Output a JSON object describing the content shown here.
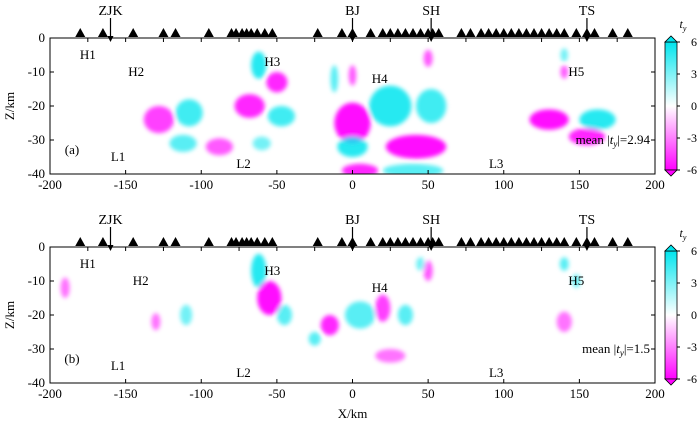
{
  "chart_data": [
    {
      "type": "heatmap",
      "panel_label": "(a)",
      "xlabel": "",
      "ylabel": "Z/km",
      "xlim": [
        -200,
        200
      ],
      "ylim": [
        -40,
        0
      ],
      "xticks": [
        -200,
        -150,
        -100,
        -50,
        0,
        50,
        100,
        150,
        200
      ],
      "yticks": [
        0,
        -10,
        -20,
        -30,
        -40
      ],
      "stations_x": [
        -180,
        -165,
        -145,
        -125,
        -117,
        -95,
        -80,
        -77,
        -73,
        -70,
        -67,
        -63,
        -58,
        -53,
        -23,
        -7,
        0,
        12,
        20,
        25,
        30,
        35,
        40,
        45,
        50,
        53,
        57,
        72,
        78,
        85,
        90,
        95,
        100,
        105,
        110,
        115,
        120,
        125,
        130,
        135,
        140,
        148,
        155,
        160,
        172,
        182
      ],
      "station_markers": [
        {
          "label": "ZJK",
          "x": -160
        },
        {
          "label": "BJ",
          "x": 0
        },
        {
          "label": "SH",
          "x": 52
        },
        {
          "label": "TS",
          "x": 155
        }
      ],
      "annotations": [
        {
          "text": "H1",
          "x": -175,
          "z": -5
        },
        {
          "text": "H2",
          "x": -143,
          "z": -10
        },
        {
          "text": "H3",
          "x": -53,
          "z": -7
        },
        {
          "text": "H4",
          "x": 18,
          "z": -12
        },
        {
          "text": "H5",
          "x": 148,
          "z": -10
        },
        {
          "text": "L1",
          "x": -155,
          "z": -35
        },
        {
          "text": "L2",
          "x": -72,
          "z": -37
        },
        {
          "text": "L3",
          "x": 95,
          "z": -37
        }
      ],
      "mean_label": {
        "prefix": "mean |",
        "var": "t",
        "sub": "y",
        "suffix": "|=2.94"
      },
      "anomalies": [
        {
          "x": -128,
          "z": -24,
          "sx": 10,
          "sz": 4,
          "v": -4
        },
        {
          "x": -108,
          "z": -22,
          "sx": 9,
          "sz": 4,
          "v": 4
        },
        {
          "x": -112,
          "z": -31,
          "sx": 9,
          "sz": 2.5,
          "v": 3
        },
        {
          "x": -88,
          "z": -32,
          "sx": 9,
          "sz": 2.5,
          "v": -3
        },
        {
          "x": -62,
          "z": -8,
          "sx": 5,
          "sz": 4,
          "v": 5
        },
        {
          "x": -50,
          "z": -13,
          "sx": 7,
          "sz": 3,
          "v": -5
        },
        {
          "x": -68,
          "z": -20,
          "sx": 10,
          "sz": 3.5,
          "v": -5
        },
        {
          "x": -47,
          "z": -23,
          "sx": 9,
          "sz": 3,
          "v": 4
        },
        {
          "x": -60,
          "z": -31,
          "sx": 6,
          "sz": 2,
          "v": 2
        },
        {
          "x": -12,
          "z": -12,
          "sx": 2.5,
          "sz": 4,
          "v": 3
        },
        {
          "x": 0,
          "z": -11,
          "sx": 2.5,
          "sz": 3,
          "v": -3
        },
        {
          "x": 0,
          "z": -25,
          "sx": 12,
          "sz": 6,
          "v": -6
        },
        {
          "x": 25,
          "z": -20,
          "sx": 14,
          "sz": 6,
          "v": 5
        },
        {
          "x": 52,
          "z": -20,
          "sx": 10,
          "sz": 5,
          "v": 4
        },
        {
          "x": 50,
          "z": -6,
          "sx": 3,
          "sz": 2.5,
          "v": -3
        },
        {
          "x": 42,
          "z": -32,
          "sx": 20,
          "sz": 3.5,
          "v": -6
        },
        {
          "x": 0,
          "z": -32,
          "sx": 10,
          "sz": 3,
          "v": 5
        },
        {
          "x": 5,
          "z": -39,
          "sx": 12,
          "sz": 2,
          "v": -5
        },
        {
          "x": 40,
          "z": -39,
          "sx": 20,
          "sz": 2,
          "v": 3
        },
        {
          "x": 130,
          "z": -24,
          "sx": 13,
          "sz": 3,
          "v": -6
        },
        {
          "x": 162,
          "z": -24,
          "sx": 12,
          "sz": 3,
          "v": 5
        },
        {
          "x": 155,
          "z": -29,
          "sx": 12,
          "sz": 2.5,
          "v": -5
        },
        {
          "x": 140,
          "z": -10,
          "sx": 2.5,
          "sz": 2,
          "v": -3
        },
        {
          "x": 140,
          "z": -5,
          "sx": 2.5,
          "sz": 2,
          "v": 2
        }
      ]
    },
    {
      "type": "heatmap",
      "panel_label": "(b)",
      "xlabel": "X/km",
      "ylabel": "Z/km",
      "xlim": [
        -200,
        200
      ],
      "ylim": [
        -40,
        0
      ],
      "xticks": [
        -200,
        -150,
        -100,
        -50,
        0,
        50,
        100,
        150,
        200
      ],
      "yticks": [
        0,
        -10,
        -20,
        -30,
        -40
      ],
      "stations_x": [
        -180,
        -165,
        -145,
        -125,
        -117,
        -95,
        -80,
        -77,
        -73,
        -70,
        -67,
        -63,
        -58,
        -53,
        -23,
        -7,
        0,
        12,
        20,
        25,
        30,
        35,
        40,
        45,
        50,
        53,
        57,
        72,
        78,
        85,
        90,
        95,
        100,
        105,
        110,
        115,
        120,
        125,
        130,
        135,
        140,
        148,
        155,
        160,
        172,
        182
      ],
      "station_markers": [
        {
          "label": "ZJK",
          "x": -160
        },
        {
          "label": "BJ",
          "x": 0
        },
        {
          "label": "SH",
          "x": 52
        },
        {
          "label": "TS",
          "x": 155
        }
      ],
      "annotations": [
        {
          "text": "H1",
          "x": -175,
          "z": -5
        },
        {
          "text": "H2",
          "x": -140,
          "z": -10
        },
        {
          "text": "H3",
          "x": -53,
          "z": -7
        },
        {
          "text": "H4",
          "x": 18,
          "z": -12
        },
        {
          "text": "H5",
          "x": 148,
          "z": -10
        },
        {
          "text": "L1",
          "x": -155,
          "z": -35
        },
        {
          "text": "L2",
          "x": -72,
          "z": -37
        },
        {
          "text": "L3",
          "x": 95,
          "z": -37
        }
      ],
      "mean_label": {
        "prefix": "mean |",
        "var": "t",
        "sub": "y",
        "suffix": "|=1.5"
      },
      "anomalies": [
        {
          "x": -190,
          "z": -12,
          "sx": 3,
          "sz": 3,
          "v": -2
        },
        {
          "x": -130,
          "z": -22,
          "sx": 3,
          "sz": 2.5,
          "v": -2
        },
        {
          "x": -110,
          "z": -20,
          "sx": 4,
          "sz": 3,
          "v": 2
        },
        {
          "x": -62,
          "z": -7,
          "sx": 5,
          "sz": 5,
          "v": 5
        },
        {
          "x": -55,
          "z": -15,
          "sx": 8,
          "sz": 5,
          "v": -6
        },
        {
          "x": -45,
          "z": -20,
          "sx": 5,
          "sz": 3,
          "v": 3
        },
        {
          "x": -15,
          "z": -23,
          "sx": 6,
          "sz": 3,
          "v": -5
        },
        {
          "x": -25,
          "z": -27,
          "sx": 4,
          "sz": 2,
          "v": 3
        },
        {
          "x": 5,
          "z": -20,
          "sx": 10,
          "sz": 4,
          "v": 3
        },
        {
          "x": 20,
          "z": -18,
          "sx": 5,
          "sz": 4,
          "v": -4
        },
        {
          "x": 35,
          "z": -20,
          "sx": 5,
          "sz": 3,
          "v": 3
        },
        {
          "x": 25,
          "z": -32,
          "sx": 10,
          "sz": 2,
          "v": -2
        },
        {
          "x": 50,
          "z": -7,
          "sx": 3,
          "sz": 3,
          "v": -3
        },
        {
          "x": 45,
          "z": -5,
          "sx": 3,
          "sz": 2,
          "v": 2
        },
        {
          "x": 140,
          "z": -5,
          "sx": 3,
          "sz": 2,
          "v": 3
        },
        {
          "x": 148,
          "z": -10,
          "sx": 3,
          "sz": 2,
          "v": 2
        },
        {
          "x": 140,
          "z": -22,
          "sx": 5,
          "sz": 3,
          "v": -2
        }
      ]
    }
  ],
  "colorbar": {
    "title_var": "t",
    "title_sub": "y",
    "ticks": [
      6,
      3,
      0,
      -3,
      -6
    ],
    "range": [
      -6,
      6
    ],
    "colors": {
      "positive": "#00e5ee",
      "zero": "#ffffff",
      "negative": "#ff00ff"
    }
  }
}
